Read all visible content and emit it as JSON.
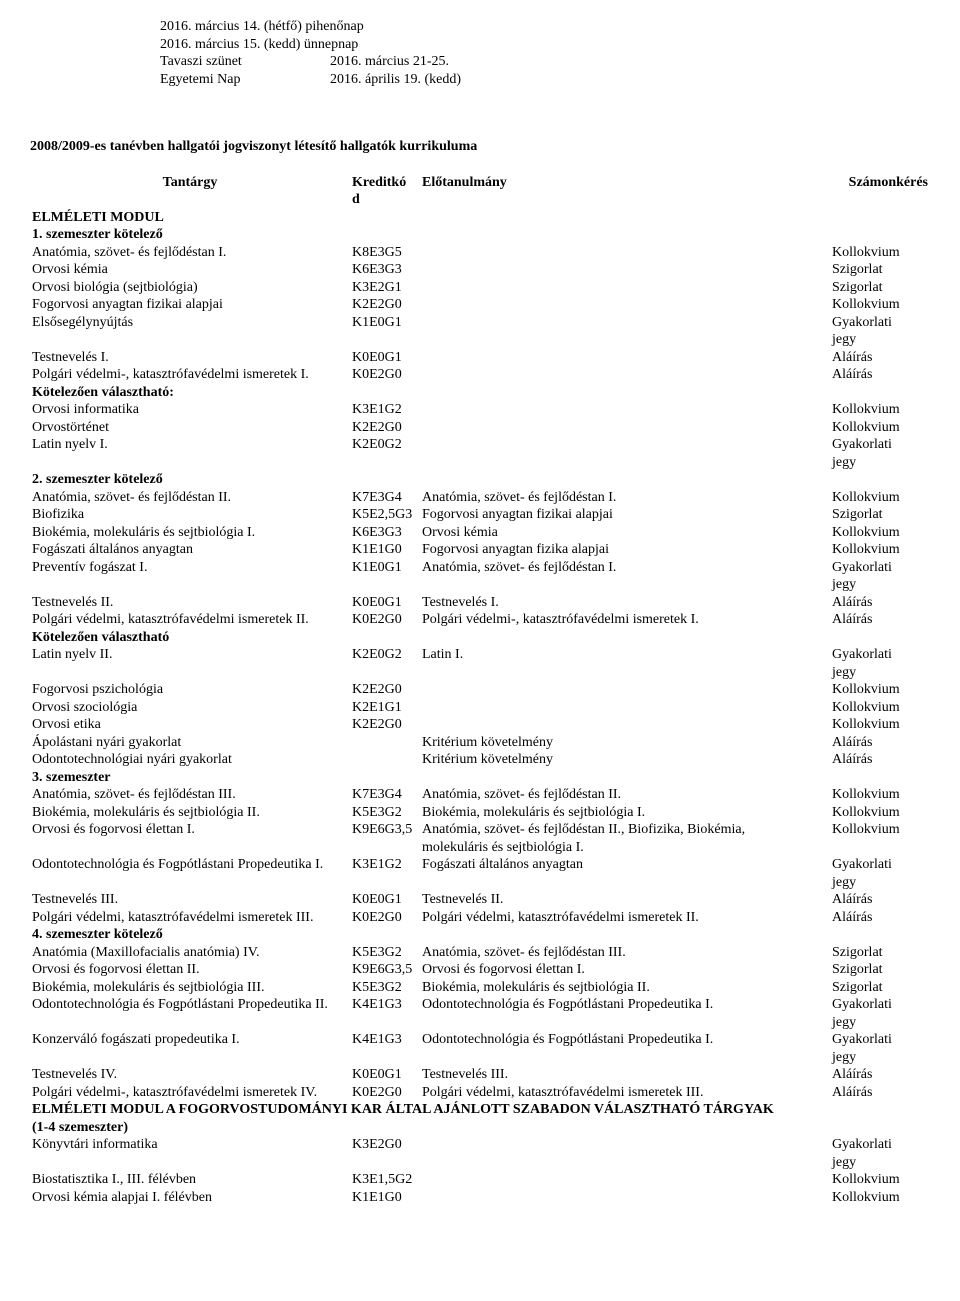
{
  "dates": [
    {
      "a": "2016. március 14. (hétfő) pihenőnap",
      "b": ""
    },
    {
      "a": "2016. március 15. (kedd) ünnepnap",
      "b": ""
    },
    {
      "a": "Tavaszi szünet",
      "b": "2016. március 21-25."
    },
    {
      "a": "Egyetemi Nap",
      "b": "2016. április 19. (kedd)"
    }
  ],
  "heading": "2008/2009-es tanévben hallgatói jogviszonyt létesítő hallgatók kurrikuluma",
  "headers": {
    "subject": "Tantárgy",
    "credit": "Kreditkó",
    "credit2": "d",
    "prereq": "Előtanulmány",
    "assess": "Számonkérés"
  },
  "modul1": "ELMÉLETI MODUL",
  "rows": [
    {
      "t": "sect",
      "s": "1. szemeszter kötelező"
    },
    {
      "s": "Anatómia, szövet- és fejlődéstan I.",
      "c": "K8E3G5",
      "p": "",
      "a": "Kollokvium"
    },
    {
      "s": "Orvosi kémia",
      "c": "K6E3G3",
      "p": "",
      "a": "Szigorlat"
    },
    {
      "s": "Orvosi biológia (sejtbiológia)",
      "c": "K3E2G1",
      "p": "",
      "a": "Szigorlat"
    },
    {
      "s": "Fogorvosi anyagtan fizikai alapjai",
      "c": "K2E2G0",
      "p": "",
      "a": "Kollokvium"
    },
    {
      "s": "Elsősegélynyújtás",
      "c": "K1E0G1",
      "p": "",
      "a": "Gyakorlati"
    },
    {
      "s": "",
      "c": "",
      "p": "",
      "a": "jegy"
    },
    {
      "s": "Testnevelés I.",
      "c": "K0E0G1",
      "p": "",
      "a": "Aláírás"
    },
    {
      "s": "Polgári védelmi-, katasztrófavédelmi ismeretek I.",
      "c": "K0E2G0",
      "p": "",
      "a": "Aláírás"
    },
    {
      "t": "sect",
      "s": "Kötelezően választható:"
    },
    {
      "s": "Orvosi informatika",
      "c": "K3E1G2",
      "p": "",
      "a": "Kollokvium"
    },
    {
      "s": "Orvostörténet",
      "c": "K2E2G0",
      "p": "",
      "a": "Kollokvium"
    },
    {
      "s": "Latin nyelv I.",
      "c": "K2E0G2",
      "p": "",
      "a": "Gyakorlati"
    },
    {
      "s": "",
      "c": "",
      "p": "",
      "a": "jegy"
    },
    {
      "t": "sect",
      "s": "2. szemeszter kötelező"
    },
    {
      "s": "Anatómia, szövet- és fejlődéstan II.",
      "c": "K7E3G4",
      "p": "Anatómia, szövet- és fejlődéstan I.",
      "a": "Kollokvium"
    },
    {
      "s": "Biofizika",
      "c": "K5E2,5G3",
      "p": "Fogorvosi anyagtan fizikai alapjai",
      "a": "Szigorlat"
    },
    {
      "s": "Biokémia, molekuláris és sejtbiológia I.",
      "c": "K6E3G3",
      "p": "Orvosi kémia",
      "a": "Kollokvium"
    },
    {
      "s": "Fogászati általános anyagtan",
      "c": "K1E1G0",
      "p": "Fogorvosi anyagtan fizika alapjai",
      "a": "Kollokvium"
    },
    {
      "s": "Preventív fogászat I.",
      "c": "K1E0G1",
      "p": "Anatómia, szövet- és fejlődéstan I.",
      "a": "Gyakorlati"
    },
    {
      "s": "",
      "c": "",
      "p": "",
      "a": "jegy"
    },
    {
      "s": "Testnevelés II.",
      "c": "K0E0G1",
      "p": "Testnevelés I.",
      "a": "Aláírás"
    },
    {
      "s": "Polgári védelmi, katasztrófavédelmi ismeretek II.",
      "c": "K0E2G0",
      "p": "Polgári védelmi-, katasztrófavédelmi ismeretek I.",
      "a": "Aláírás"
    },
    {
      "t": "sect",
      "s": "Kötelezően választható"
    },
    {
      "s": "Latin nyelv II.",
      "c": "K2E0G2",
      "p": "Latin I.",
      "a": "Gyakorlati"
    },
    {
      "s": "",
      "c": "",
      "p": "",
      "a": "jegy"
    },
    {
      "s": "Fogorvosi pszichológia",
      "c": "K2E2G0",
      "p": "",
      "a": "Kollokvium"
    },
    {
      "s": "Orvosi szociológia",
      "c": "K2E1G1",
      "p": "",
      "a": "Kollokvium"
    },
    {
      "s": "Orvosi etika",
      "c": "K2E2G0",
      "p": "",
      "a": "Kollokvium"
    },
    {
      "s": "Ápolástani nyári gyakorlat",
      "c": "",
      "p": "Kritérium követelmény",
      "a": "Aláírás"
    },
    {
      "s": "Odontotechnológiai nyári gyakorlat",
      "c": "",
      "p": "Kritérium követelmény",
      "a": "Aláírás"
    },
    {
      "t": "sect",
      "s": "3. szemeszter"
    },
    {
      "s": "Anatómia, szövet- és fejlődéstan III.",
      "c": "K7E3G4",
      "p": "Anatómia, szövet- és fejlődéstan II.",
      "a": "Kollokvium"
    },
    {
      "s": "Biokémia, molekuláris és sejtbiológia II.",
      "c": "K5E3G2",
      "p": "Biokémia, molekuláris és sejtbiológia I.",
      "a": "Kollokvium"
    },
    {
      "s": "Orvosi és fogorvosi élettan I.",
      "c": "K9E6G3,5",
      "p": "Anatómia, szövet- és fejlődéstan II., Biofizika, Biokémia,",
      "a": "Kollokvium"
    },
    {
      "s": "",
      "c": "",
      "p": "molekuláris és sejtbiológia I.",
      "a": ""
    },
    {
      "s": "Odontotechnológia és Fogpótlástani Propedeutika I.",
      "c": "K3E1G2",
      "p": "Fogászati általános anyagtan",
      "a": "Gyakorlati"
    },
    {
      "s": "",
      "c": "",
      "p": "",
      "a": "jegy"
    },
    {
      "s": "Testnevelés III.",
      "c": "K0E0G1",
      "p": "Testnevelés II.",
      "a": "Aláírás"
    },
    {
      "s": "Polgári védelmi, katasztrófavédelmi ismeretek III.",
      "c": "K0E2G0",
      "p": "Polgári védelmi, katasztrófavédelmi ismeretek II.",
      "a": "Aláírás"
    },
    {
      "t": "sect",
      "s": "4. szemeszter kötelező"
    },
    {
      "s": "Anatómia (Maxillofacialis anatómia) IV.",
      "c": "K5E3G2",
      "p": "Anatómia, szövet- és fejlődéstan III.",
      "a": "Szigorlat"
    },
    {
      "s": "Orvosi és fogorvosi élettan II.",
      "c": "K9E6G3,5",
      "p": "Orvosi és fogorvosi élettan I.",
      "a": "Szigorlat"
    },
    {
      "s": "Biokémia, molekuláris és sejtbiológia III.",
      "c": "K5E3G2",
      "p": "Biokémia, molekuláris és sejtbiológia II.",
      "a": "Szigorlat"
    },
    {
      "s": "Odontotechnológia és Fogpótlástani Propedeutika II.",
      "c": "K4E1G3",
      "p": "Odontotechnológia és Fogpótlástani Propedeutika I.",
      "a": "Gyakorlati"
    },
    {
      "s": "",
      "c": "",
      "p": "",
      "a": "jegy"
    },
    {
      "s": "Konzerváló fogászati propedeutika I.",
      "c": "K4E1G3",
      "p": "Odontotechnológia és Fogpótlástani Propedeutika I.",
      "a": "Gyakorlati"
    },
    {
      "s": "",
      "c": "",
      "p": "",
      "a": "jegy"
    },
    {
      "s": "Testnevelés IV.",
      "c": "K0E0G1",
      "p": "Testnevelés III.",
      "a": "Aláírás"
    },
    {
      "s": "Polgári védelmi-, katasztrófavédelmi ismeretek IV.",
      "c": "K0E2G0",
      "p": "Polgári védelmi, katasztrófavédelmi ismeretek III.",
      "a": "Aláírás"
    }
  ],
  "modul2_a": "ELMÉLETI MODUL A FOGORVOSTUDOMÁNYI KAR ÁLTAL AJÁNLOTT SZABADON VÁLASZTHATÓ TÁRGYAK",
  "modul2_b": "(1-4 szemeszter)",
  "rows2": [
    {
      "s": "Könyvtári informatika",
      "c": "K3E2G0",
      "p": "",
      "a": "Gyakorlati"
    },
    {
      "s": "",
      "c": "",
      "p": "",
      "a": "jegy"
    },
    {
      "s": "Biostatisztika I., III. félévben",
      "c": "K3E1,5G2",
      "p": "",
      "a": "Kollokvium"
    },
    {
      "s": "Orvosi kémia alapjai I. félévben",
      "c": "K1E1G0",
      "p": "",
      "a": "Kollokvium"
    }
  ]
}
